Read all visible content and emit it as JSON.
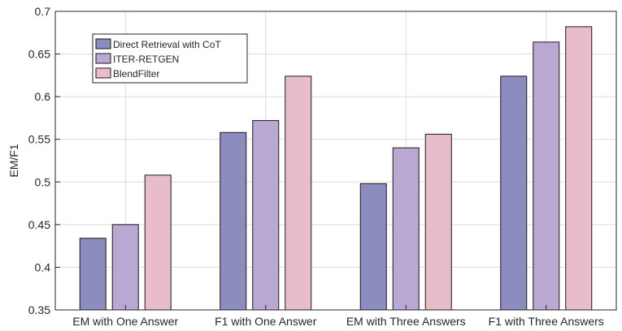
{
  "chart_data": {
    "type": "bar",
    "title": "",
    "xlabel": "",
    "ylabel": "EM/F1",
    "ylim": [
      0.35,
      0.7
    ],
    "yticks": [
      0.35,
      0.4,
      0.45,
      0.5,
      0.55,
      0.6,
      0.65,
      0.7
    ],
    "categories": [
      "EM with One Answer",
      "F1 with One Answer",
      "EM with Three Answers",
      "F1 with Three Answers"
    ],
    "series": [
      {
        "name": "Direct Retrieval with CoT",
        "color": "#8c8cbe",
        "values": [
          0.434,
          0.558,
          0.498,
          0.624
        ]
      },
      {
        "name": "ITER-RETGEN",
        "color": "#b8a8d2",
        "values": [
          0.45,
          0.572,
          0.54,
          0.664
        ]
      },
      {
        "name": "BlendFilter",
        "color": "#e8bcc8",
        "values": [
          0.508,
          0.624,
          0.556,
          0.682
        ]
      }
    ],
    "grid": true,
    "legend_position": "top-left"
  }
}
